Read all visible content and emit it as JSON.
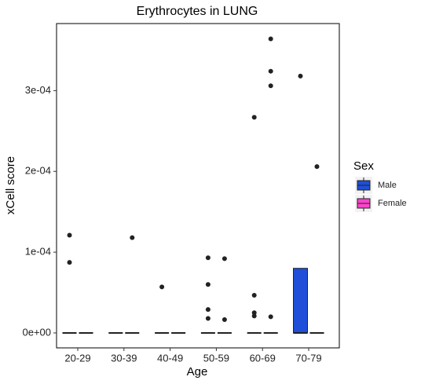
{
  "chart_data": {
    "type": "boxplot",
    "title": "Erythrocytes in LUNG",
    "x_label": "Age",
    "y_label": "xCell score",
    "categories": [
      "20-29",
      "30-39",
      "40-49",
      "50-59",
      "60-69",
      "70-79"
    ],
    "ylim": [
      -1.85e-05,
      0.000383
    ],
    "yticks": [
      {
        "value": 0,
        "label": "0e+00"
      },
      {
        "value": 0.0001,
        "label": "1e-04"
      },
      {
        "value": 0.0002,
        "label": "2e-04"
      },
      {
        "value": 0.0003,
        "label": "3e-04"
      }
    ],
    "legend_title": "Sex",
    "legend_position": "right",
    "series": [
      {
        "name": "Male",
        "color": "#1f4fd8",
        "stats": [
          [
            0,
            0,
            0,
            0,
            0
          ],
          [
            0,
            0,
            0,
            0,
            0
          ],
          [
            0,
            0,
            0,
            0,
            0
          ],
          [
            0,
            0,
            0,
            0,
            0
          ],
          [
            0,
            0,
            0,
            0,
            0
          ],
          [
            0,
            0,
            0,
            8e-05,
            8e-05
          ]
        ],
        "outliers": [
          [
            0.000121,
            8.74e-05
          ],
          [],
          [
            5.7e-05
          ],
          [
            9.3e-05,
            6e-05,
            2.9e-05,
            1.8e-05
          ],
          [
            0.000267,
            4.66e-05,
            2.5e-05,
            2.1e-05
          ],
          [
            0.000318
          ]
        ]
      },
      {
        "name": "Female",
        "color": "#ff44cc",
        "stats": [
          [
            0,
            0,
            0,
            0,
            0
          ],
          [
            0,
            0,
            0,
            0,
            0
          ],
          [
            0,
            0,
            0,
            0,
            0
          ],
          [
            0,
            0,
            0,
            0,
            0
          ],
          [
            0,
            0,
            0,
            0,
            0
          ],
          [
            0,
            0,
            0,
            0,
            0
          ]
        ],
        "outliers": [
          [],
          [
            0.000118
          ],
          [],
          [
            9.2e-05,
            1.65e-05
          ],
          [
            0.000364,
            0.000324,
            0.000306,
            2e-05
          ],
          [
            0.000206
          ]
        ]
      }
    ]
  }
}
